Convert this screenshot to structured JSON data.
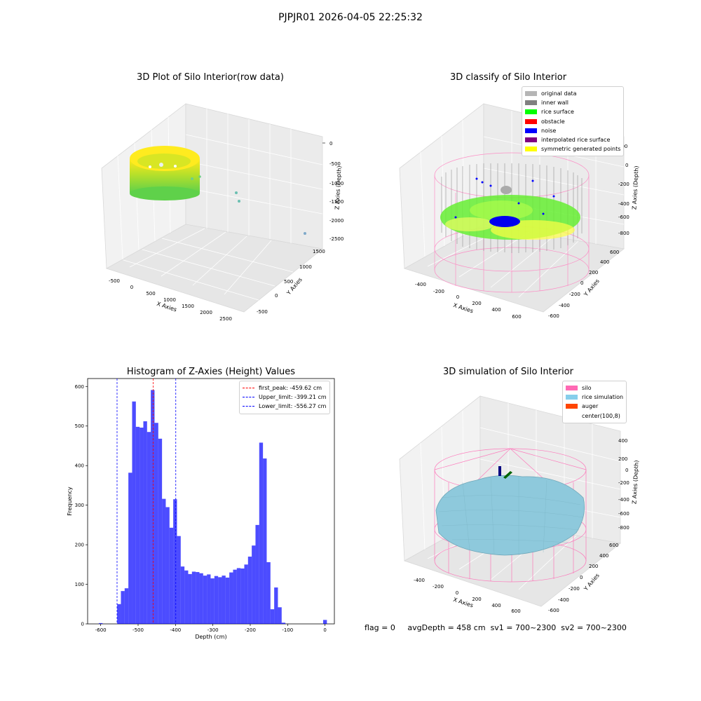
{
  "suptitle": "PJPJR01 2026-04-05 22:25:32",
  "panels": {
    "raw": {
      "title": "3D Plot of Silo Interior(row data)",
      "xlabel": "X Axies",
      "ylabel": "Y Axies",
      "zlabel": "Z Axies (Depth)",
      "xticks": [
        "-500",
        "0",
        "500",
        "1000",
        "1500",
        "2000",
        "2500"
      ],
      "yticks": [
        "-500",
        "0",
        "500",
        "1000",
        "1500"
      ],
      "zticks": [
        "0",
        "-500",
        "-1000",
        "-1500",
        "-2000",
        "-2500"
      ]
    },
    "classify": {
      "title": "3D classify of Silo Interior",
      "xlabel": "X Axies",
      "ylabel": "Y Axies",
      "zlabel": "Z Axies (Depth)",
      "xticks": [
        "-400",
        "-200",
        "0",
        "200",
        "400",
        "600"
      ],
      "yticks": [
        "-600",
        "-400",
        "-200",
        "0",
        "200",
        "400",
        "600"
      ],
      "zticks": [
        "200",
        "0",
        "-200",
        "-400",
        "-600",
        "-800"
      ],
      "legend": [
        {
          "label": "original data",
          "color": "#b5b5b5"
        },
        {
          "label": "inner wall",
          "color": "#808080"
        },
        {
          "label": "rice surface",
          "color": "#00ff00"
        },
        {
          "label": "obstacle",
          "color": "#ff0000"
        },
        {
          "label": "noise",
          "color": "#0000ff"
        },
        {
          "label": "interpolated rice surface",
          "color": "#800080"
        },
        {
          "label": "symmetric generated points",
          "color": "#ffff00"
        }
      ]
    },
    "sim": {
      "title": "3D simulation of Silo Interior",
      "xlabel": "X Axies",
      "ylabel": "Y Axies",
      "zlabel": "Z Axies (Depth)",
      "xticks": [
        "-400",
        "-200",
        "0",
        "200",
        "400",
        "600"
      ],
      "yticks": [
        "-600",
        "-400",
        "-200",
        "0",
        "200",
        "400",
        "600"
      ],
      "zticks": [
        "400",
        "200",
        "0",
        "-200",
        "-400",
        "-600",
        "-800"
      ],
      "legend": [
        {
          "label": "silo",
          "color": "#ff69b4"
        },
        {
          "label": "rice simulation",
          "color": "#87ceeb"
        },
        {
          "label": "auger",
          "color": "#ff4500"
        },
        {
          "label": "center(100,8)",
          "color": "#ffffff"
        }
      ]
    }
  },
  "status": {
    "flag": "flag = 0",
    "avg": "avgDepth = 458 cm",
    "sv1": "sv1 = 700~2300",
    "sv2": "sv2 = 700~2300"
  },
  "chart_data": {
    "type": "bar",
    "title": "Histogram of Z-Axies (Height) Values",
    "xlabel": "Depth (cm)",
    "ylabel": "Frequency",
    "xlim": [
      -635,
      25
    ],
    "ylim": [
      0,
      620
    ],
    "xticks": [
      -600,
      -500,
      -400,
      -300,
      -200,
      -100,
      0
    ],
    "yticks": [
      0,
      100,
      200,
      300,
      400,
      500,
      600
    ],
    "bar_color": "#0000ff",
    "bins": [
      {
        "x0": -605,
        "x1": -595,
        "v": 2
      },
      {
        "x0": -556,
        "x1": -546,
        "v": 50
      },
      {
        "x0": -546,
        "x1": -536,
        "v": 83
      },
      {
        "x0": -536,
        "x1": -526,
        "v": 90
      },
      {
        "x0": -526,
        "x1": -516,
        "v": 382
      },
      {
        "x0": -516,
        "x1": -506,
        "v": 562
      },
      {
        "x0": -506,
        "x1": -496,
        "v": 498
      },
      {
        "x0": -496,
        "x1": -486,
        "v": 496
      },
      {
        "x0": -486,
        "x1": -476,
        "v": 512
      },
      {
        "x0": -476,
        "x1": -466,
        "v": 485
      },
      {
        "x0": -466,
        "x1": -456,
        "v": 591
      },
      {
        "x0": -456,
        "x1": -446,
        "v": 508
      },
      {
        "x0": -446,
        "x1": -436,
        "v": 468
      },
      {
        "x0": -436,
        "x1": -426,
        "v": 316
      },
      {
        "x0": -426,
        "x1": -416,
        "v": 295
      },
      {
        "x0": -416,
        "x1": -406,
        "v": 243
      },
      {
        "x0": -406,
        "x1": -396,
        "v": 315
      },
      {
        "x0": -396,
        "x1": -386,
        "v": 222
      },
      {
        "x0": -386,
        "x1": -376,
        "v": 145
      },
      {
        "x0": -376,
        "x1": -366,
        "v": 135
      },
      {
        "x0": -366,
        "x1": -356,
        "v": 126
      },
      {
        "x0": -356,
        "x1": -346,
        "v": 132
      },
      {
        "x0": -346,
        "x1": -336,
        "v": 131
      },
      {
        "x0": -336,
        "x1": -326,
        "v": 128
      },
      {
        "x0": -326,
        "x1": -316,
        "v": 122
      },
      {
        "x0": -316,
        "x1": -306,
        "v": 125
      },
      {
        "x0": -306,
        "x1": -296,
        "v": 115
      },
      {
        "x0": -296,
        "x1": -286,
        "v": 121
      },
      {
        "x0": -286,
        "x1": -276,
        "v": 118
      },
      {
        "x0": -276,
        "x1": -266,
        "v": 122
      },
      {
        "x0": -266,
        "x1": -256,
        "v": 117
      },
      {
        "x0": -256,
        "x1": -246,
        "v": 130
      },
      {
        "x0": -246,
        "x1": -236,
        "v": 137
      },
      {
        "x0": -236,
        "x1": -226,
        "v": 141
      },
      {
        "x0": -226,
        "x1": -216,
        "v": 140
      },
      {
        "x0": -216,
        "x1": -206,
        "v": 150
      },
      {
        "x0": -206,
        "x1": -196,
        "v": 170
      },
      {
        "x0": -196,
        "x1": -186,
        "v": 198
      },
      {
        "x0": -186,
        "x1": -176,
        "v": 250
      },
      {
        "x0": -176,
        "x1": -166,
        "v": 458
      },
      {
        "x0": -166,
        "x1": -156,
        "v": 418
      },
      {
        "x0": -156,
        "x1": -146,
        "v": 156
      },
      {
        "x0": -146,
        "x1": -136,
        "v": 37
      },
      {
        "x0": -136,
        "x1": -126,
        "v": 92
      },
      {
        "x0": -126,
        "x1": -116,
        "v": 42
      },
      {
        "x0": -116,
        "x1": -106,
        "v": 3
      },
      {
        "x0": -5,
        "x1": 5,
        "v": 10
      }
    ],
    "lines": [
      {
        "label": "first_peak: -459.62 cm",
        "x": -459.62,
        "color": "#ff0000"
      },
      {
        "label": "Upper_limit: -399.21 cm",
        "x": -399.21,
        "color": "#0000ff"
      },
      {
        "label": "Lower_limit: -556.27 cm",
        "x": -556.27,
        "color": "#0000ff"
      }
    ],
    "legend_position": "upper right"
  }
}
